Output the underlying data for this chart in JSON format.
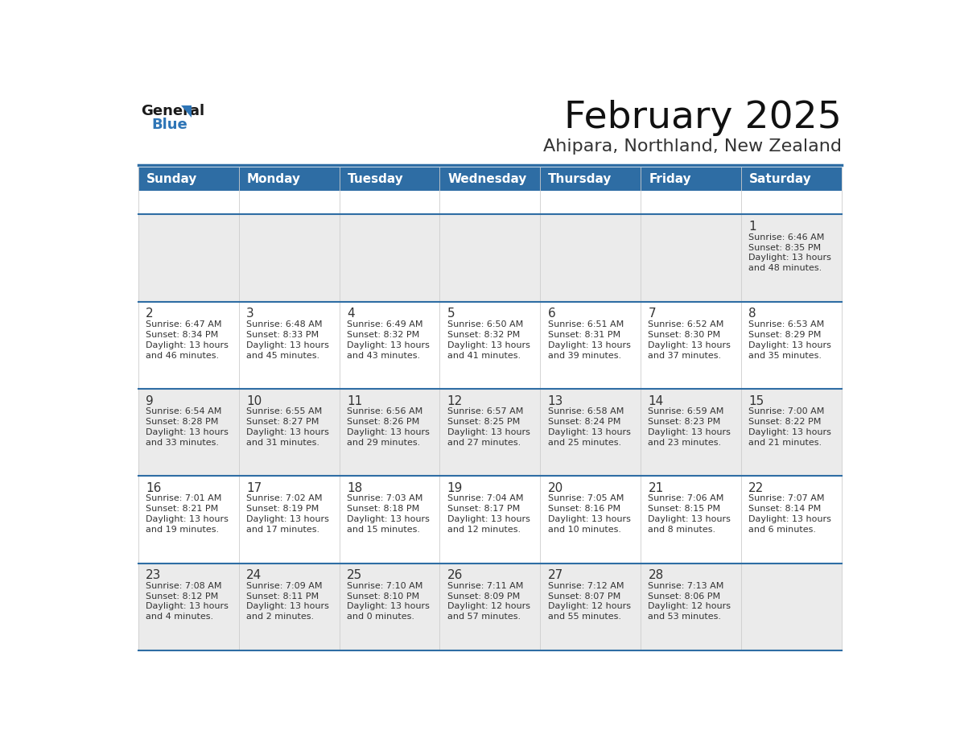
{
  "title": "February 2025",
  "subtitle": "Ahipara, Northland, New Zealand",
  "header_bg": "#2E6DA4",
  "header_text": "#FFFFFF",
  "row_bg_odd": "#EBEBEB",
  "row_bg_even": "#FFFFFF",
  "day_number_color": "#333333",
  "detail_text_color": "#333333",
  "border_color": "#2E6DA4",
  "grid_line_color": "#CCCCCC",
  "days_of_week": [
    "Sunday",
    "Monday",
    "Tuesday",
    "Wednesday",
    "Thursday",
    "Friday",
    "Saturday"
  ],
  "weeks": [
    [
      {
        "day": null,
        "sunrise": null,
        "sunset": null,
        "daylight": null
      },
      {
        "day": null,
        "sunrise": null,
        "sunset": null,
        "daylight": null
      },
      {
        "day": null,
        "sunrise": null,
        "sunset": null,
        "daylight": null
      },
      {
        "day": null,
        "sunrise": null,
        "sunset": null,
        "daylight": null
      },
      {
        "day": null,
        "sunrise": null,
        "sunset": null,
        "daylight": null
      },
      {
        "day": null,
        "sunrise": null,
        "sunset": null,
        "daylight": null
      },
      {
        "day": 1,
        "sunrise": "6:46 AM",
        "sunset": "8:35 PM",
        "daylight": "13 hours and 48 minutes."
      }
    ],
    [
      {
        "day": 2,
        "sunrise": "6:47 AM",
        "sunset": "8:34 PM",
        "daylight": "13 hours and 46 minutes."
      },
      {
        "day": 3,
        "sunrise": "6:48 AM",
        "sunset": "8:33 PM",
        "daylight": "13 hours and 45 minutes."
      },
      {
        "day": 4,
        "sunrise": "6:49 AM",
        "sunset": "8:32 PM",
        "daylight": "13 hours and 43 minutes."
      },
      {
        "day": 5,
        "sunrise": "6:50 AM",
        "sunset": "8:32 PM",
        "daylight": "13 hours and 41 minutes."
      },
      {
        "day": 6,
        "sunrise": "6:51 AM",
        "sunset": "8:31 PM",
        "daylight": "13 hours and 39 minutes."
      },
      {
        "day": 7,
        "sunrise": "6:52 AM",
        "sunset": "8:30 PM",
        "daylight": "13 hours and 37 minutes."
      },
      {
        "day": 8,
        "sunrise": "6:53 AM",
        "sunset": "8:29 PM",
        "daylight": "13 hours and 35 minutes."
      }
    ],
    [
      {
        "day": 9,
        "sunrise": "6:54 AM",
        "sunset": "8:28 PM",
        "daylight": "13 hours and 33 minutes."
      },
      {
        "day": 10,
        "sunrise": "6:55 AM",
        "sunset": "8:27 PM",
        "daylight": "13 hours and 31 minutes."
      },
      {
        "day": 11,
        "sunrise": "6:56 AM",
        "sunset": "8:26 PM",
        "daylight": "13 hours and 29 minutes."
      },
      {
        "day": 12,
        "sunrise": "6:57 AM",
        "sunset": "8:25 PM",
        "daylight": "13 hours and 27 minutes."
      },
      {
        "day": 13,
        "sunrise": "6:58 AM",
        "sunset": "8:24 PM",
        "daylight": "13 hours and 25 minutes."
      },
      {
        "day": 14,
        "sunrise": "6:59 AM",
        "sunset": "8:23 PM",
        "daylight": "13 hours and 23 minutes."
      },
      {
        "day": 15,
        "sunrise": "7:00 AM",
        "sunset": "8:22 PM",
        "daylight": "13 hours and 21 minutes."
      }
    ],
    [
      {
        "day": 16,
        "sunrise": "7:01 AM",
        "sunset": "8:21 PM",
        "daylight": "13 hours and 19 minutes."
      },
      {
        "day": 17,
        "sunrise": "7:02 AM",
        "sunset": "8:19 PM",
        "daylight": "13 hours and 17 minutes."
      },
      {
        "day": 18,
        "sunrise": "7:03 AM",
        "sunset": "8:18 PM",
        "daylight": "13 hours and 15 minutes."
      },
      {
        "day": 19,
        "sunrise": "7:04 AM",
        "sunset": "8:17 PM",
        "daylight": "13 hours and 12 minutes."
      },
      {
        "day": 20,
        "sunrise": "7:05 AM",
        "sunset": "8:16 PM",
        "daylight": "13 hours and 10 minutes."
      },
      {
        "day": 21,
        "sunrise": "7:06 AM",
        "sunset": "8:15 PM",
        "daylight": "13 hours and 8 minutes."
      },
      {
        "day": 22,
        "sunrise": "7:07 AM",
        "sunset": "8:14 PM",
        "daylight": "13 hours and 6 minutes."
      }
    ],
    [
      {
        "day": 23,
        "sunrise": "7:08 AM",
        "sunset": "8:12 PM",
        "daylight": "13 hours and 4 minutes."
      },
      {
        "day": 24,
        "sunrise": "7:09 AM",
        "sunset": "8:11 PM",
        "daylight": "13 hours and 2 minutes."
      },
      {
        "day": 25,
        "sunrise": "7:10 AM",
        "sunset": "8:10 PM",
        "daylight": "13 hours and 0 minutes."
      },
      {
        "day": 26,
        "sunrise": "7:11 AM",
        "sunset": "8:09 PM",
        "daylight": "12 hours and 57 minutes."
      },
      {
        "day": 27,
        "sunrise": "7:12 AM",
        "sunset": "8:07 PM",
        "daylight": "12 hours and 55 minutes."
      },
      {
        "day": 28,
        "sunrise": "7:13 AM",
        "sunset": "8:06 PM",
        "daylight": "12 hours and 53 minutes."
      },
      {
        "day": null,
        "sunrise": null,
        "sunset": null,
        "daylight": null
      }
    ]
  ],
  "logo_color1": "#1a1a1a",
  "logo_color2": "#2E75B6",
  "fig_width": 11.88,
  "fig_height": 9.18
}
